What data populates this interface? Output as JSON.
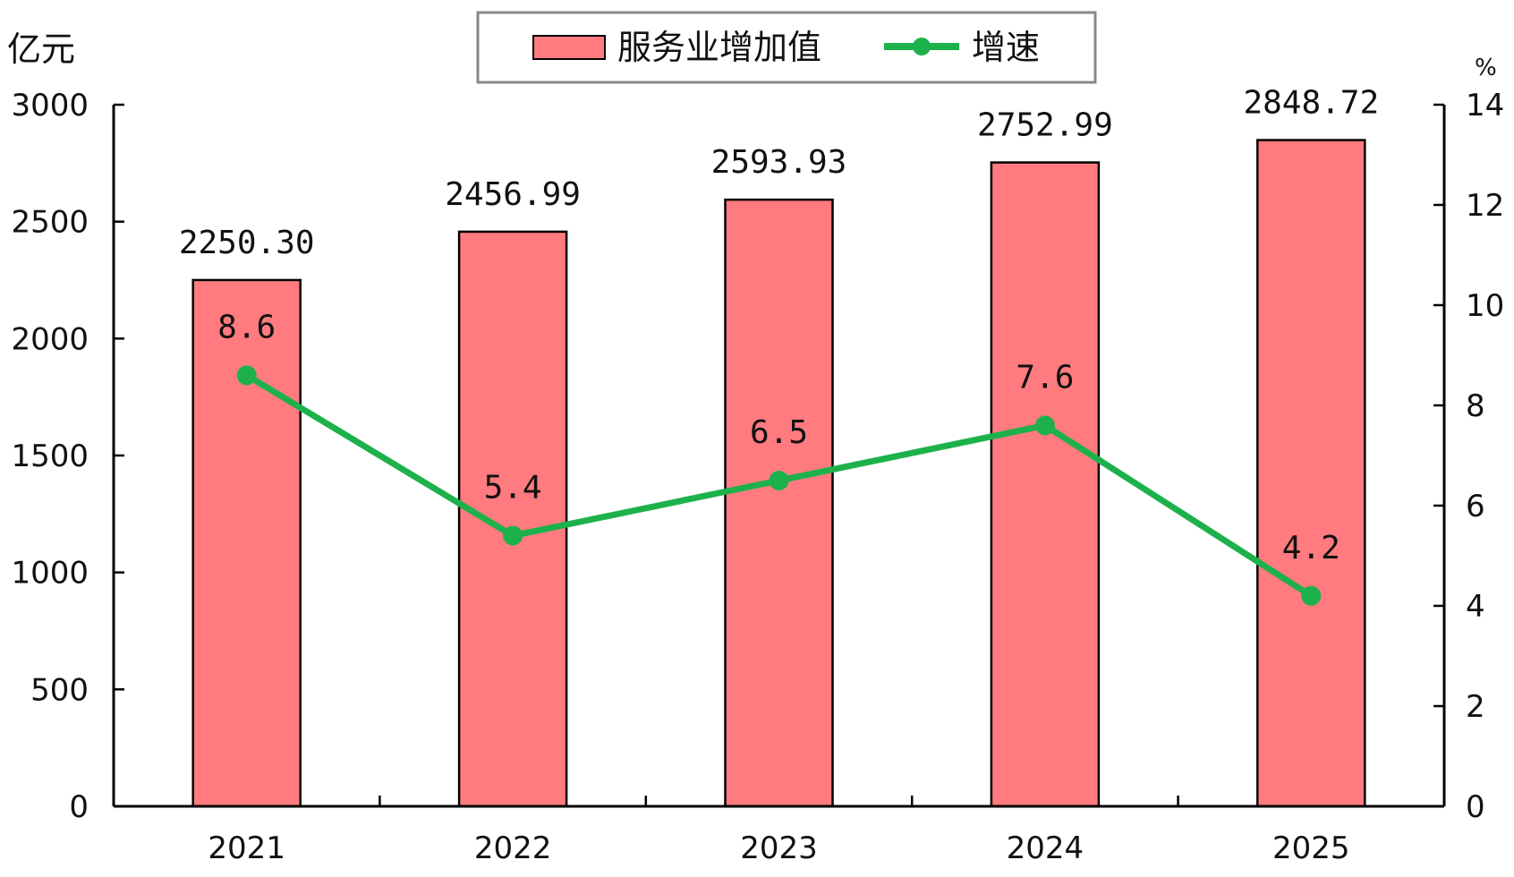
{
  "chart_data": {
    "type": "bar",
    "categories": [
      "2021",
      "2022",
      "2023",
      "2024",
      "2025"
    ],
    "series": [
      {
        "name": "服务业增加值",
        "type": "bar",
        "axis": "left",
        "values": [
          2250.3,
          2456.99,
          2593.93,
          2752.99,
          2848.72
        ],
        "labels": [
          "2250.30",
          "2456.99",
          "2593.93",
          "2752.99",
          "2848.72"
        ],
        "color": "#ff7b7f"
      },
      {
        "name": "增速",
        "type": "line",
        "axis": "right",
        "values": [
          8.6,
          5.4,
          6.5,
          7.6,
          4.2
        ],
        "labels": [
          "8.6",
          "5.4",
          "6.5",
          "7.6",
          "4.2"
        ],
        "color": "#1db14b"
      }
    ],
    "y_left": {
      "unit": "亿元",
      "ticks": [
        "0",
        "500",
        "1000",
        "1500",
        "2000",
        "2500",
        "3000"
      ],
      "ylim": [
        0,
        3000
      ]
    },
    "y_right": {
      "unit": "%",
      "ticks": [
        "0",
        "2",
        "4",
        "6",
        "8",
        "10",
        "12",
        "14"
      ],
      "ylim": [
        0,
        14
      ]
    },
    "legend": {
      "placement": "top-center"
    },
    "grid": false
  }
}
